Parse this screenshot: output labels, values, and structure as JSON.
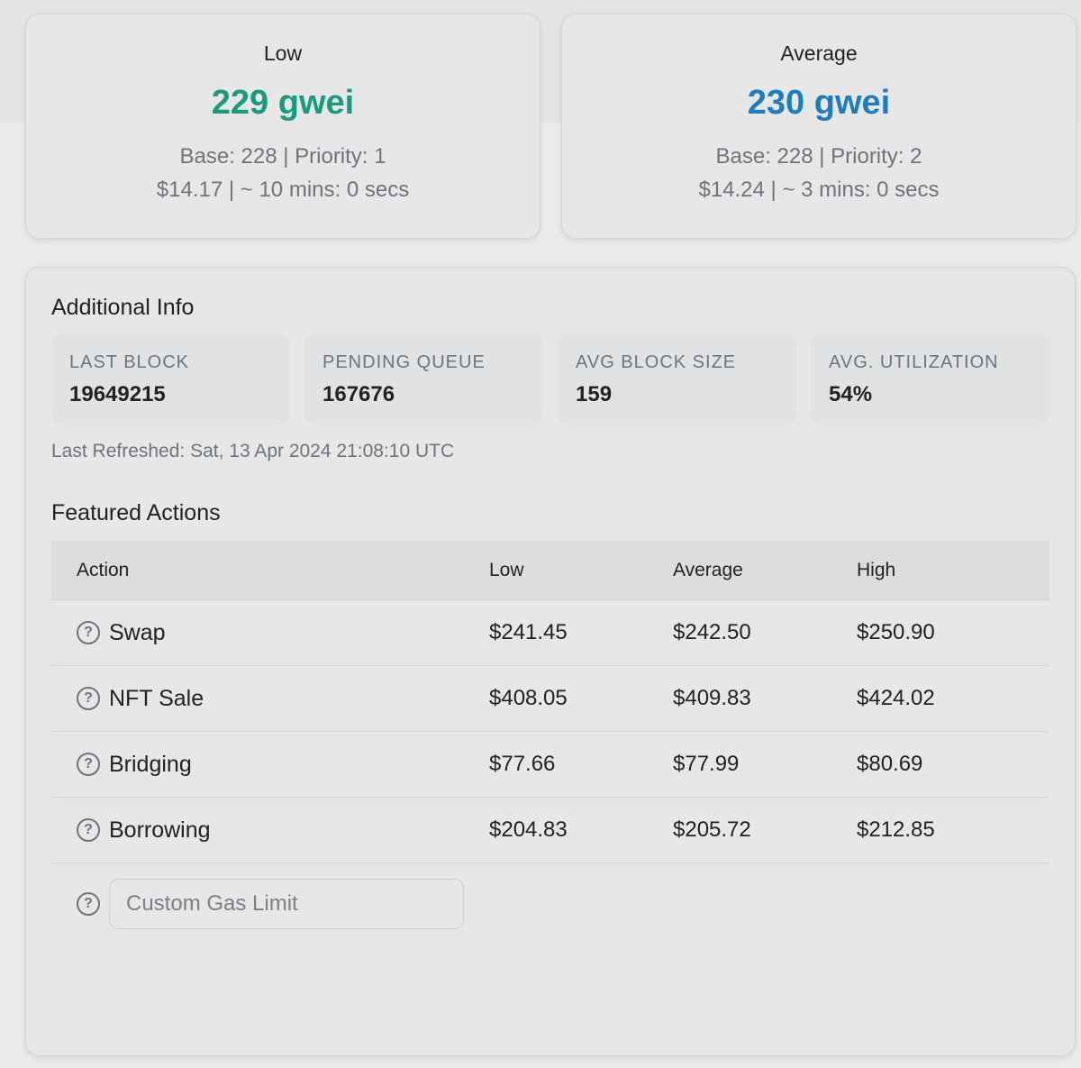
{
  "gas_cards": {
    "low": {
      "label": "Low",
      "price": "229 gwei",
      "base_priority": "Base: 228 | Priority: 1",
      "cost_time": "$14.17 | ~ 10 mins: 0 secs"
    },
    "average": {
      "label": "Average",
      "price": "230 gwei",
      "base_priority": "Base: 228 | Priority: 2",
      "cost_time": "$14.24 | ~ 3 mins: 0 secs"
    }
  },
  "additional_info": {
    "title": "Additional Info",
    "stats": [
      {
        "label": "LAST BLOCK",
        "value": "19649215"
      },
      {
        "label": "PENDING QUEUE",
        "value": "167676"
      },
      {
        "label": "AVG BLOCK SIZE",
        "value": "159"
      },
      {
        "label": "AVG. UTILIZATION",
        "value": "54%"
      }
    ],
    "last_refreshed": "Last Refreshed: Sat, 13 Apr 2024 21:08:10 UTC"
  },
  "featured_actions": {
    "title": "Featured Actions",
    "columns": [
      "Action",
      "Low",
      "Average",
      "High"
    ],
    "rows": [
      {
        "action": "Swap",
        "low": "$241.45",
        "average": "$242.50",
        "high": "$250.90"
      },
      {
        "action": "NFT Sale",
        "low": "$408.05",
        "average": "$409.83",
        "high": "$424.02"
      },
      {
        "action": "Bridging",
        "low": "$77.66",
        "average": "$77.99",
        "high": "$80.69"
      },
      {
        "action": "Borrowing",
        "low": "$204.83",
        "average": "$205.72",
        "high": "$212.85"
      }
    ],
    "custom_gas_placeholder": "Custom Gas Limit",
    "help_icon": "?"
  },
  "colors": {
    "low_accent": "#1b9a7e",
    "average_accent": "#1f7dbf"
  }
}
